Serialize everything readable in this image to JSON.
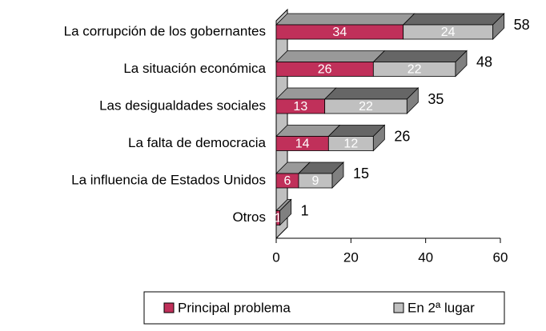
{
  "chart_data": {
    "type": "bar3d_stacked_horizontal",
    "categories": [
      "La corrupción de los gobernantes",
      "La situación económica",
      "Las desigualdades sociales",
      "La falta de democracia",
      "La influencia de Estados Unidos",
      "Otros"
    ],
    "series": [
      {
        "name": "Principal problema",
        "color": "#c0305a",
        "values": [
          34,
          26,
          13,
          14,
          6,
          1
        ]
      },
      {
        "name": "En 2ª lugar",
        "color": "#c0c0c0",
        "values": [
          24,
          22,
          22,
          12,
          9,
          0
        ]
      }
    ],
    "totals": [
      58,
      48,
      35,
      26,
      15,
      1
    ],
    "xlim": [
      0,
      60
    ],
    "xticks": [
      0,
      20,
      40,
      60
    ],
    "legend": "bottom"
  }
}
